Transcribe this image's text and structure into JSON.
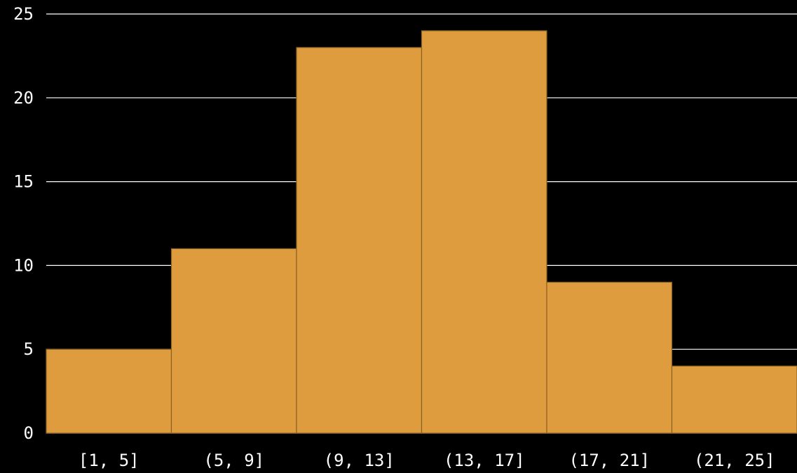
{
  "chart_data": {
    "type": "bar",
    "categories": [
      "[1, 5]",
      "(5, 9]",
      "(9, 13]",
      "(13, 17]",
      "(17, 21]",
      "(21, 25]"
    ],
    "values": [
      5,
      11,
      23,
      24,
      9,
      4
    ],
    "title": "",
    "xlabel": "",
    "ylabel": "",
    "ylim": [
      0,
      25
    ],
    "yticks": [
      0,
      5,
      10,
      15,
      20,
      25
    ],
    "grid": true,
    "legend": "none",
    "bar_color": "#DE9C3F",
    "background": "#000000",
    "text_color": "#ffffff"
  }
}
